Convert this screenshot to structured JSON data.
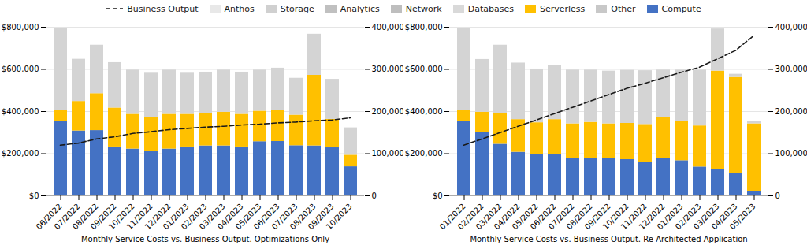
{
  "chart_data": [
    {
      "type": "bar",
      "stacked": true,
      "grid": true,
      "xlabel": "Monthly Service Costs vs. Business Output. Optimizations Only",
      "categories": [
        "06/2022",
        "07/2022",
        "08/2022",
        "09/2022",
        "10/2022",
        "11/2022",
        "12/2022",
        "01/2023",
        "02/2023",
        "03/2023",
        "04/2023",
        "05/2023",
        "06/2023",
        "07/2023",
        "08/2023",
        "09/2023",
        "10/2023"
      ],
      "series": [
        {
          "name": "Compute",
          "color": "#4472C4",
          "values": [
            355000,
            308000,
            310000,
            232000,
            222000,
            212000,
            222000,
            232000,
            237000,
            237000,
            232000,
            257000,
            258000,
            238000,
            237000,
            228000,
            138000
          ]
        },
        {
          "name": "Serverless",
          "color": "#FFC000",
          "values": [
            50000,
            140000,
            175000,
            185000,
            165000,
            160000,
            165000,
            155000,
            155000,
            160000,
            155000,
            145000,
            148000,
            145000,
            335000,
            135000,
            55000
          ]
        },
        {
          "color": "#D4D4D4",
          "values": [
            390000,
            200000,
            230000,
            215000,
            210000,
            210000,
            210000,
            195000,
            195000,
            200000,
            200000,
            195000,
            200000,
            175000,
            195000,
            190000,
            130000
          ]
        },
        {
          "name": "Business Output",
          "type": "line",
          "axis": "y2",
          "color": "#1a1a1a",
          "line_style": "dashed",
          "values": [
            120000,
            125000,
            135000,
            140000,
            148000,
            152000,
            157000,
            160000,
            163000,
            165000,
            168000,
            170000,
            173000,
            175000,
            178000,
            180000,
            185000
          ]
        }
      ],
      "ylim": [
        0,
        800000
      ],
      "yticks": [
        {
          "value": 0,
          "label": "$0"
        },
        {
          "value": 200000,
          "label": "$200,000"
        },
        {
          "value": 400000,
          "label": "$400,000"
        },
        {
          "value": 600000,
          "label": "$600,000"
        },
        {
          "value": 800000,
          "label": "$800,000"
        }
      ],
      "y2lim": [
        0,
        400000
      ],
      "y2ticks": [
        0,
        {
          "value": 100000,
          "label": "100,000"
        },
        {
          "value": 200000,
          "label": "200,000"
        },
        {
          "value": 300000,
          "label": "300,000"
        },
        {
          "value": 400000,
          "label": "400,000"
        }
      ]
    },
    {
      "type": "bar",
      "stacked": true,
      "grid": true,
      "xlabel": "Monthly Service Costs vs. Business Output. Re-Architected Application",
      "categories": [
        "01/2022",
        "02/2022",
        "03/2022",
        "04/2022",
        "05/2022",
        "06/2022",
        "07/2022",
        "08/2022",
        "09/2022",
        "10/2022",
        "11/2022",
        "12/2022",
        "01/2023",
        "02/2023",
        "03/2023",
        "04/2023",
        "05/2023"
      ],
      "series": [
        {
          "name": "Compute",
          "color": "#4472C4",
          "values": [
            355000,
            302000,
            245000,
            207000,
            197000,
            197000,
            177000,
            177000,
            177000,
            172000,
            157000,
            177000,
            167000,
            137000,
            127000,
            107000,
            22000
          ]
        },
        {
          "name": "Serverless",
          "color": "#FFC000",
          "values": [
            50000,
            95000,
            145000,
            155000,
            150000,
            165000,
            165000,
            172000,
            165000,
            172000,
            182000,
            195000,
            185000,
            195000,
            465000,
            455000,
            320000
          ]
        },
        {
          "color": "#D4D4D4",
          "values": [
            390000,
            250000,
            325000,
            268000,
            255000,
            255000,
            255000,
            248000,
            250000,
            252000,
            255000,
            225000,
            245000,
            265000,
            200000,
            15000,
            10000
          ]
        },
        {
          "name": "Business Output",
          "type": "line",
          "axis": "y2",
          "color": "#1a1a1a",
          "line_style": "dashed",
          "values": [
            120000,
            135000,
            150000,
            165000,
            180000,
            195000,
            210000,
            225000,
            240000,
            255000,
            267000,
            280000,
            293000,
            305000,
            325000,
            345000,
            380000
          ]
        }
      ],
      "ylim": [
        0,
        800000
      ],
      "yticks": [
        {
          "value": 0,
          "label": "$0"
        },
        {
          "value": 200000,
          "label": "$200,000"
        },
        {
          "value": 400000,
          "label": "$400,000"
        },
        {
          "value": 600000,
          "label": "$600,000"
        },
        {
          "value": 800000,
          "label": "$800,000"
        }
      ],
      "y2lim": [
        0,
        400000
      ],
      "y2ticks": [
        0,
        {
          "value": 100000,
          "label": "100,000"
        },
        {
          "value": 200000,
          "label": "200,000"
        },
        {
          "value": 300000,
          "label": "300,000"
        },
        {
          "value": 400000,
          "label": "400,000"
        }
      ]
    }
  ],
  "legend_entries": [
    {
      "name": "Business Output",
      "color": "#1a1a1a",
      "line_style": "dashed"
    },
    {
      "name": "Anthos",
      "color": "#E8E8E8"
    },
    {
      "name": "Storage",
      "color": "#D0D0D0"
    },
    {
      "name": "Analytics",
      "color": "#C0C0C0"
    },
    {
      "name": "Network",
      "color": "#BEBEBE"
    },
    {
      "name": "Databases",
      "color": "#D9D9D9"
    },
    {
      "name": "Serverless",
      "color": "#FFC000"
    },
    {
      "name": "Other",
      "color": "#C8C8C8"
    },
    {
      "name": "Compute",
      "color": "#4472C4"
    }
  ]
}
